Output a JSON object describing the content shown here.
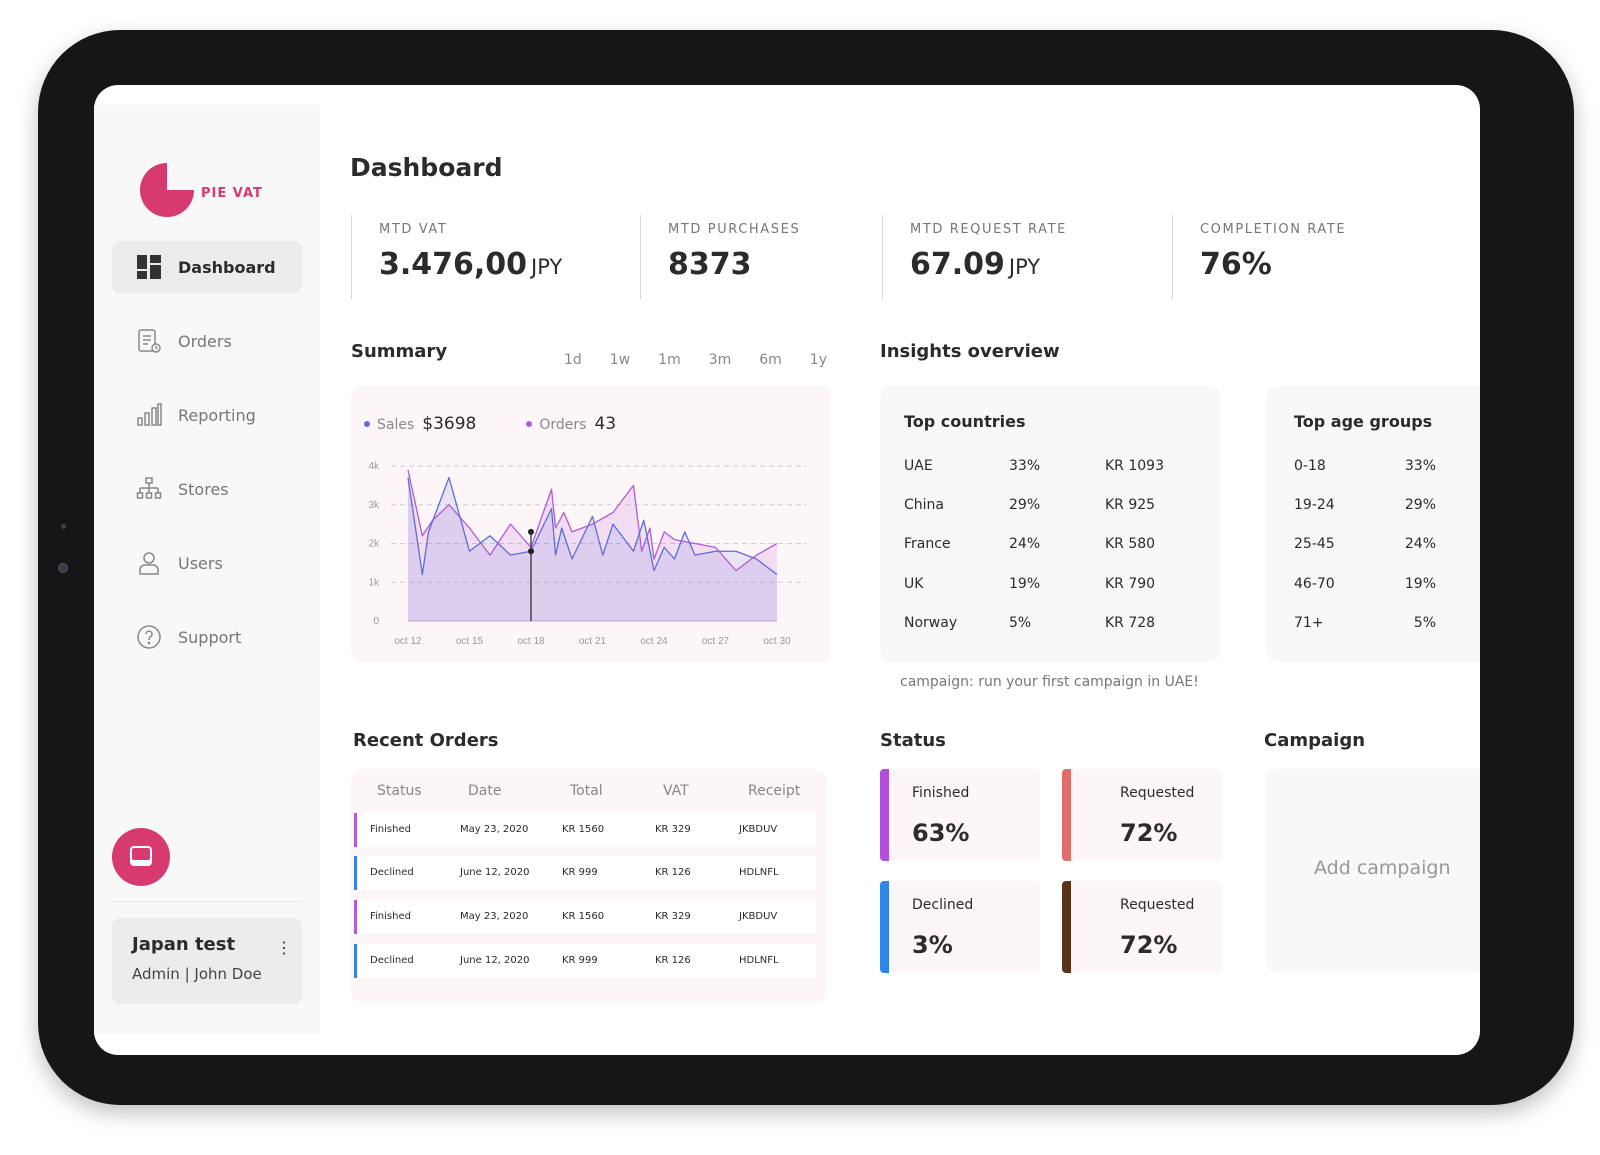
{
  "brand": {
    "name": "PIE VAT",
    "color": "#d63a6e"
  },
  "sidebar": {
    "items": [
      {
        "label": "Dashboard",
        "icon": "dashboard-icon",
        "active": true
      },
      {
        "label": "Orders",
        "icon": "orders-icon"
      },
      {
        "label": "Reporting",
        "icon": "reporting-icon"
      },
      {
        "label": "Stores",
        "icon": "stores-icon"
      },
      {
        "label": "Users",
        "icon": "users-icon"
      },
      {
        "label": "Support",
        "icon": "support-icon"
      }
    ],
    "chat_icon": "chat-icon",
    "user": {
      "name": "Japan test",
      "role": "Admin | John Doe",
      "menu_icon": "kebab-menu-icon"
    }
  },
  "page": {
    "title": "Dashboard"
  },
  "kpis": [
    {
      "label": "MTD VAT",
      "value": "3.476,00",
      "unit": "JPY"
    },
    {
      "label": "MTD PURCHASES",
      "value": "8373",
      "unit": ""
    },
    {
      "label": "MTD REQUEST RATE",
      "value": "67.09",
      "unit": "JPY"
    },
    {
      "label": "COMPLETION RATE",
      "value": "76%",
      "unit": ""
    }
  ],
  "summary": {
    "title": "Summary",
    "ranges": [
      "1d",
      "1w",
      "1m",
      "3m",
      "6m",
      "1y"
    ],
    "legend": [
      {
        "name": "Sales",
        "value": "$3698",
        "color": "#5b6fd6"
      },
      {
        "name": "Orders",
        "value": "43",
        "color": "#b35ad6"
      }
    ]
  },
  "chart_data": {
    "type": "area",
    "x_ticks": [
      "oct 12",
      "oct 15",
      "oct 18",
      "oct 21",
      "oct 24",
      "oct 27",
      "oct 30"
    ],
    "y_ticks": [
      "0",
      "1k",
      "2k",
      "3k",
      "4k"
    ],
    "ylim": [
      0,
      4000
    ],
    "grid": true,
    "marker": "oct 18",
    "series": [
      {
        "name": "Orders",
        "color": "#b35ad6",
        "x": [
          12,
          12.7,
          13.2,
          14,
          15,
          16,
          17,
          18,
          19,
          19.2,
          19.6,
          20,
          21,
          22,
          23,
          23.4,
          23.8,
          24,
          24.5,
          25,
          26,
          27,
          28,
          29,
          30
        ],
        "y": [
          3900,
          2200,
          2600,
          3000,
          2400,
          1700,
          2500,
          1900,
          3400,
          2400,
          2800,
          2300,
          2500,
          2800,
          3500,
          1800,
          2400,
          1600,
          2300,
          2100,
          2000,
          1900,
          1300,
          1700,
          2000
        ]
      },
      {
        "name": "Sales",
        "color": "#5b6fd6",
        "x": [
          12,
          12.7,
          13,
          14,
          15,
          16,
          17,
          18,
          19,
          19.2,
          19.5,
          20,
          21,
          21.5,
          22,
          23,
          23.5,
          24,
          24.5,
          25,
          25.5,
          26,
          27,
          28,
          29,
          30
        ],
        "y": [
          3700,
          1200,
          2300,
          3700,
          1800,
          2200,
          1700,
          1800,
          2900,
          1700,
          2400,
          1600,
          2700,
          1700,
          2500,
          1800,
          2600,
          1300,
          1900,
          1600,
          2300,
          1700,
          1800,
          1800,
          1600,
          1200
        ]
      }
    ]
  },
  "insights": {
    "title": "Insights overview",
    "top_countries": {
      "title": "Top countries",
      "rows": [
        {
          "name": "UAE",
          "pct": "33%",
          "amount": "KR 1093"
        },
        {
          "name": "China",
          "pct": "29%",
          "amount": "KR 925"
        },
        {
          "name": "France",
          "pct": "24%",
          "amount": "KR 580"
        },
        {
          "name": "UK",
          "pct": "19%",
          "amount": "KR 790"
        },
        {
          "name": "Norway",
          "pct": "5%",
          "amount": "KR 728"
        }
      ]
    },
    "top_age_groups": {
      "title": "Top age groups",
      "rows": [
        {
          "name": "0-18",
          "pct": "33%"
        },
        {
          "name": "19-24",
          "pct": "29%"
        },
        {
          "name": "25-45",
          "pct": "24%"
        },
        {
          "name": "46-70",
          "pct": "19%"
        },
        {
          "name": "71+",
          "pct": "5%"
        }
      ]
    },
    "campaign_hint": "campaign: run your first campaign in UAE!"
  },
  "recent_orders": {
    "title": "Recent Orders",
    "columns": [
      "Status",
      "Date",
      "Total",
      "VAT",
      "Receipt"
    ],
    "rows": [
      {
        "status": "Finished",
        "date": "May 23, 2020",
        "total": "KR 1560",
        "vat": "KR 329",
        "receipt": "JKBDUV",
        "color": "#b35ad6"
      },
      {
        "status": "Declined",
        "date": "June 12, 2020",
        "total": "KR 999",
        "vat": "KR 126",
        "receipt": "HDLNFL",
        "color": "#3b82e6"
      },
      {
        "status": "Finished",
        "date": "May 23, 2020",
        "total": "KR 1560",
        "vat": "KR 329",
        "receipt": "JKBDUV",
        "color": "#b35ad6"
      },
      {
        "status": "Declined",
        "date": "June 12, 2020",
        "total": "KR 999",
        "vat": "KR 126",
        "receipt": "HDLNFL",
        "color": "#3b82e6"
      }
    ]
  },
  "status": {
    "title": "Status",
    "cards": [
      {
        "label": "Finished",
        "value": "63%",
        "color": "#b04fdc"
      },
      {
        "label": "Requested",
        "value": "72%",
        "color": "#e06c6c"
      },
      {
        "label": "Declined",
        "value": "3%",
        "color": "#2f86e8"
      },
      {
        "label": "Requested",
        "value": "72%",
        "color": "#5a3318"
      }
    ]
  },
  "campaign": {
    "title": "Campaign",
    "add_label": "Add campaign"
  }
}
